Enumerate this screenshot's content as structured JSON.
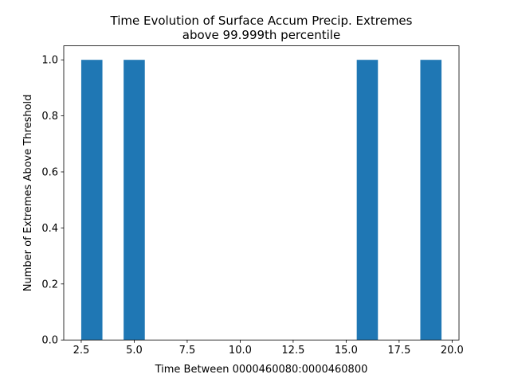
{
  "chart_data": {
    "type": "bar",
    "title_lines": [
      "Time Evolution of Surface Accum Precip. Extremes",
      "above 99.999th percentile"
    ],
    "xlabel": "Time Between 0000460080:0000460800",
    "ylabel": "Number of Extremes Above Threshold",
    "xlim": [
      1.675,
      20.325
    ],
    "ylim": [
      0,
      1.05
    ],
    "xticks": [
      2.5,
      5.0,
      7.5,
      10.0,
      12.5,
      15.0,
      17.5,
      20.0
    ],
    "xtick_labels": [
      "2.5",
      "5.0",
      "7.5",
      "10.0",
      "12.5",
      "15.0",
      "17.5",
      "20.0"
    ],
    "yticks": [
      0.0,
      0.2,
      0.4,
      0.6,
      0.8,
      1.0
    ],
    "ytick_labels": [
      "0.0",
      "0.2",
      "0.4",
      "0.6",
      "0.8",
      "1.0"
    ],
    "grid": false,
    "bar_color": "#1f77b4",
    "bins": [
      {
        "x0": 2.5,
        "x1": 3.5,
        "value": 1
      },
      {
        "x0": 4.5,
        "x1": 5.5,
        "value": 1
      },
      {
        "x0": 15.5,
        "x1": 16.5,
        "value": 1
      },
      {
        "x0": 18.5,
        "x1": 19.5,
        "value": 1
      }
    ]
  }
}
